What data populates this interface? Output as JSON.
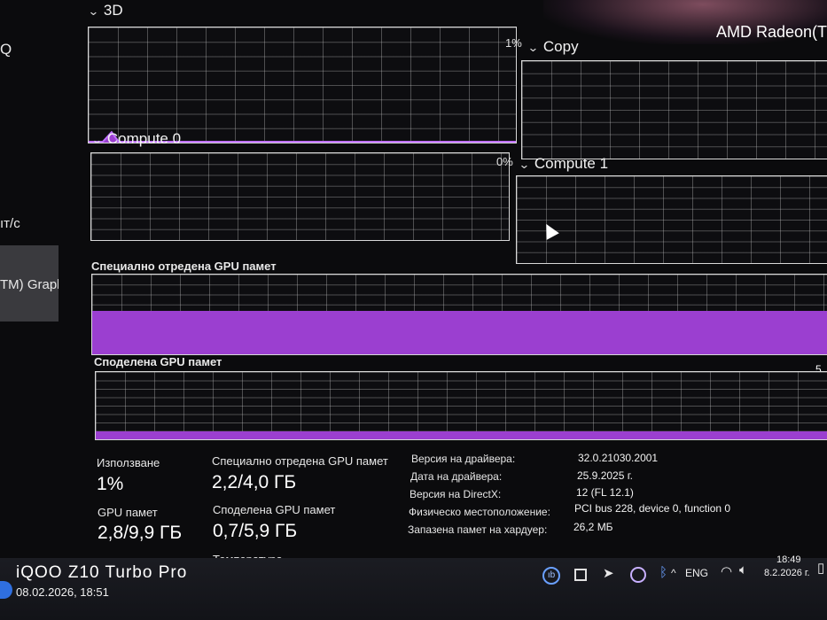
{
  "window": {
    "gpu_name": "AMD Radeon(TM"
  },
  "sidebar": {
    "fragment_top": "Q",
    "fragment_rate": "ıт/с",
    "fragment_selected": "TM) Grapl"
  },
  "engines": {
    "threed": {
      "label": "3D",
      "percent": "1%",
      "usage_fraction": 0.01
    },
    "copy": {
      "label": "Copy"
    },
    "compute0": {
      "label": "Compute 0",
      "percent": "0%",
      "usage_fraction": 0
    },
    "compute1": {
      "label": "Compute 1"
    }
  },
  "memory": {
    "dedicated_label": "Специално отредена GPU памет",
    "dedicated_fraction": 0.55,
    "shared_label": "Споделена GPU памет",
    "shared_right_fragment": "5,",
    "shared_fraction": 0.12
  },
  "stats": {
    "usage_label": "Използване",
    "usage_value": "1%",
    "gpu_memory_label": "GPU памет",
    "gpu_memory_value": "2,8/9,9 ГБ",
    "dedicated_label": "Специално отредена GPU памет",
    "dedicated_value": "2,2/4,0 ГБ",
    "shared_label": "Споделена GPU памет",
    "shared_value": "0,7/5,9 ГБ",
    "temperature_label": "Температура"
  },
  "info": {
    "driver_version_label": "Версия на драйвера:",
    "driver_version_value": "32.0.21030.2001",
    "driver_date_label": "Дата на драйвера:",
    "driver_date_value": "25.9.2025 г.",
    "directx_label": "Версия на DirectX:",
    "directx_value": "12 (FL 12.1)",
    "location_label": "Физическо местоположение:",
    "location_value": "PCI bus 228, device 0, function 0",
    "reserved_label": "Запазена памет на хардуер:",
    "reserved_value": "26,2 МБ"
  },
  "taskbar": {
    "language": "ENG",
    "time": "18:49",
    "date": "8.2.2026 г.",
    "icons": [
      "onenote-icon",
      "windows-app-icon",
      "telegram-icon",
      "viber-icon",
      "bluetooth-icon",
      "chevron-up-icon",
      "wifi-icon",
      "volume-icon",
      "battery-icon"
    ]
  },
  "watermark": {
    "brand": "iQOO Z10 Turbo Pro",
    "timestamp": "08.02.2026, 18:51"
  },
  "colors": {
    "accent": "#9b3fd0",
    "graph_grid": "#c8c8c8",
    "background": "#0b0b0d"
  }
}
